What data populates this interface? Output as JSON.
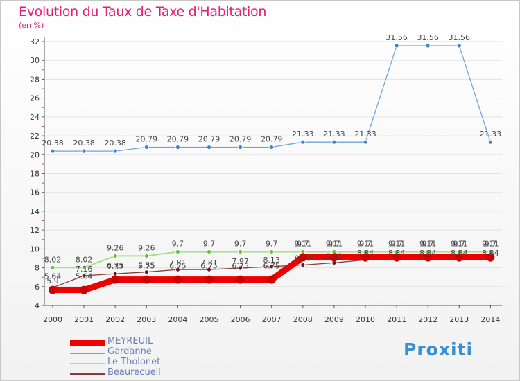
{
  "title": "Evolution du Taux de Taxe d'Habitation",
  "units": "(en %)",
  "logo": "Proxiti",
  "colors": {
    "title": "#e0207a",
    "axis": "#555555",
    "grid": "#e2e2e2"
  },
  "chart_data": {
    "type": "line",
    "title": "Evolution du Taux de Taxe d'Habitation",
    "ylabel": "(en %)",
    "xlabel": "",
    "ylim": [
      4,
      32
    ],
    "yticks": [
      "4",
      "6",
      "8",
      "10",
      "12",
      "14",
      "16",
      "18",
      "20",
      "22",
      "24",
      "26",
      "28",
      "30",
      "32"
    ],
    "categories": [
      "2000",
      "2001",
      "2002",
      "2003",
      "2004",
      "2005",
      "2006",
      "2007",
      "2008",
      "2009",
      "2010",
      "2011",
      "2012",
      "2013",
      "2014"
    ],
    "legend_position": "bottom-left",
    "series": [
      {
        "name": "MEYREUIL",
        "color": "#ee0000",
        "point_color": "#cc0000",
        "width": 9,
        "values": [
          5.64,
          5.64,
          6.75,
          6.75,
          6.75,
          6.75,
          6.75,
          6.75,
          9.11,
          9.11,
          9.11,
          9.11,
          9.11,
          9.11,
          9.11
        ],
        "labels": [
          "5.64",
          "5.64",
          "6.75",
          "6.75",
          "6.75",
          "6.75",
          "6.75",
          "6.75",
          "9.11",
          "9.11",
          "9.11",
          "9.11",
          "9.11",
          "9.11",
          "9.11"
        ]
      },
      {
        "name": "Gardanne",
        "color": "#6ea6d8",
        "point_color": "#3d85c6",
        "width": 1.3,
        "values": [
          20.38,
          20.38,
          20.38,
          20.79,
          20.79,
          20.79,
          20.79,
          20.79,
          21.33,
          21.33,
          21.33,
          31.56,
          31.56,
          31.56,
          21.33
        ],
        "labels": [
          "20.38",
          "20.38",
          "20.38",
          "20.79",
          "20.79",
          "20.79",
          "20.79",
          "20.79",
          "21.33",
          "21.33",
          "21.33",
          "31.56",
          "31.56",
          "31.56",
          "21.33"
        ]
      },
      {
        "name": "Le Tholonet",
        "color": "#a6e08a",
        "point_color": "#66c23a",
        "width": 2,
        "values": [
          8.02,
          8.02,
          9.26,
          9.26,
          9.7,
          9.7,
          9.7,
          9.7,
          9.7,
          9.7,
          9.7,
          9.7,
          9.7,
          9.7,
          9.7
        ],
        "labels": [
          "8.02",
          "8.02",
          "9.26",
          "9.26",
          "9.7",
          "9.7",
          "9.7",
          "9.7",
          "9.7",
          "9.7",
          "9.7",
          "9.7",
          "9.7",
          "9.7",
          "9.7"
        ]
      },
      {
        "name": "Beaurecueil",
        "color": "#8a3a3a",
        "point_color": "#6a1a1a",
        "width": 1.3,
        "values": [
          5.9,
          7.16,
          7.37,
          7.55,
          7.81,
          7.81,
          7.97,
          8.13,
          8.3,
          8.53,
          8.84,
          8.84,
          8.84,
          8.84,
          8.84
        ],
        "labels": [
          "5.9",
          "7.16",
          "7.37",
          "7.55",
          "7.81",
          "7.81",
          "7.97",
          "8.13",
          "8.30",
          "8.53",
          "8.84",
          "8.84",
          "8.84",
          "8.84",
          "8.84"
        ]
      }
    ]
  }
}
